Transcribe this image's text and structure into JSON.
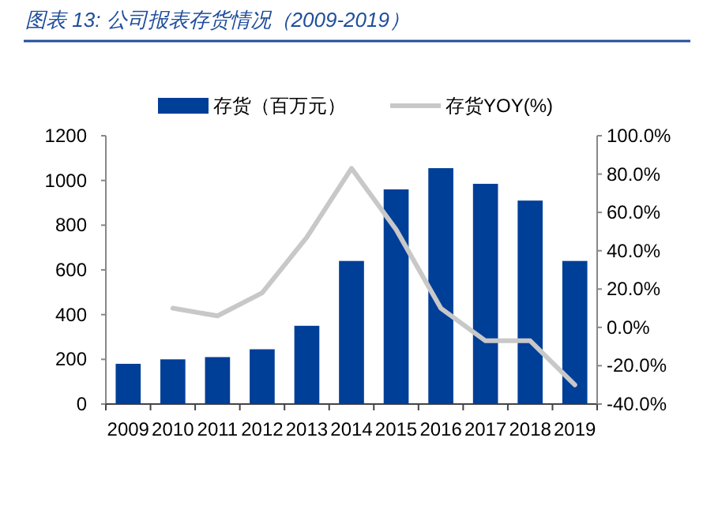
{
  "chart_data": {
    "type": "bar",
    "title": "图表 13: 公司报表存货情况（2009-2019）",
    "categories": [
      "2009",
      "2010",
      "2011",
      "2012",
      "2013",
      "2014",
      "2015",
      "2016",
      "2017",
      "2018",
      "2019"
    ],
    "series": [
      {
        "name": "存货（百万元）",
        "color": "#003f98",
        "values": [
          180,
          200,
          210,
          245,
          350,
          640,
          960,
          1055,
          985,
          910,
          640
        ]
      },
      {
        "name": "存货YOY(%)",
        "type": "line",
        "axis": "y2",
        "color": "#c8c8c8",
        "values": [
          null,
          10,
          6,
          18,
          47,
          83,
          51,
          10,
          -7,
          -7,
          -30
        ]
      }
    ],
    "ylim": [
      0,
      1200
    ],
    "yticks": [
      0,
      200,
      400,
      600,
      800,
      1000,
      1200
    ],
    "y2lim": [
      -40,
      100
    ],
    "y2ticks": [
      {
        "value": -40,
        "label": "-40.0%"
      },
      {
        "value": -20,
        "label": "-20.0%"
      },
      {
        "value": 0,
        "label": "0.0%"
      },
      {
        "value": 20,
        "label": "20.0%"
      },
      {
        "value": 40,
        "label": "40.0%"
      },
      {
        "value": 60,
        "label": "60.0%"
      },
      {
        "value": 80,
        "label": "80.0%"
      },
      {
        "value": 100,
        "label": "100.0%"
      }
    ],
    "legend": "top",
    "grid": false
  }
}
